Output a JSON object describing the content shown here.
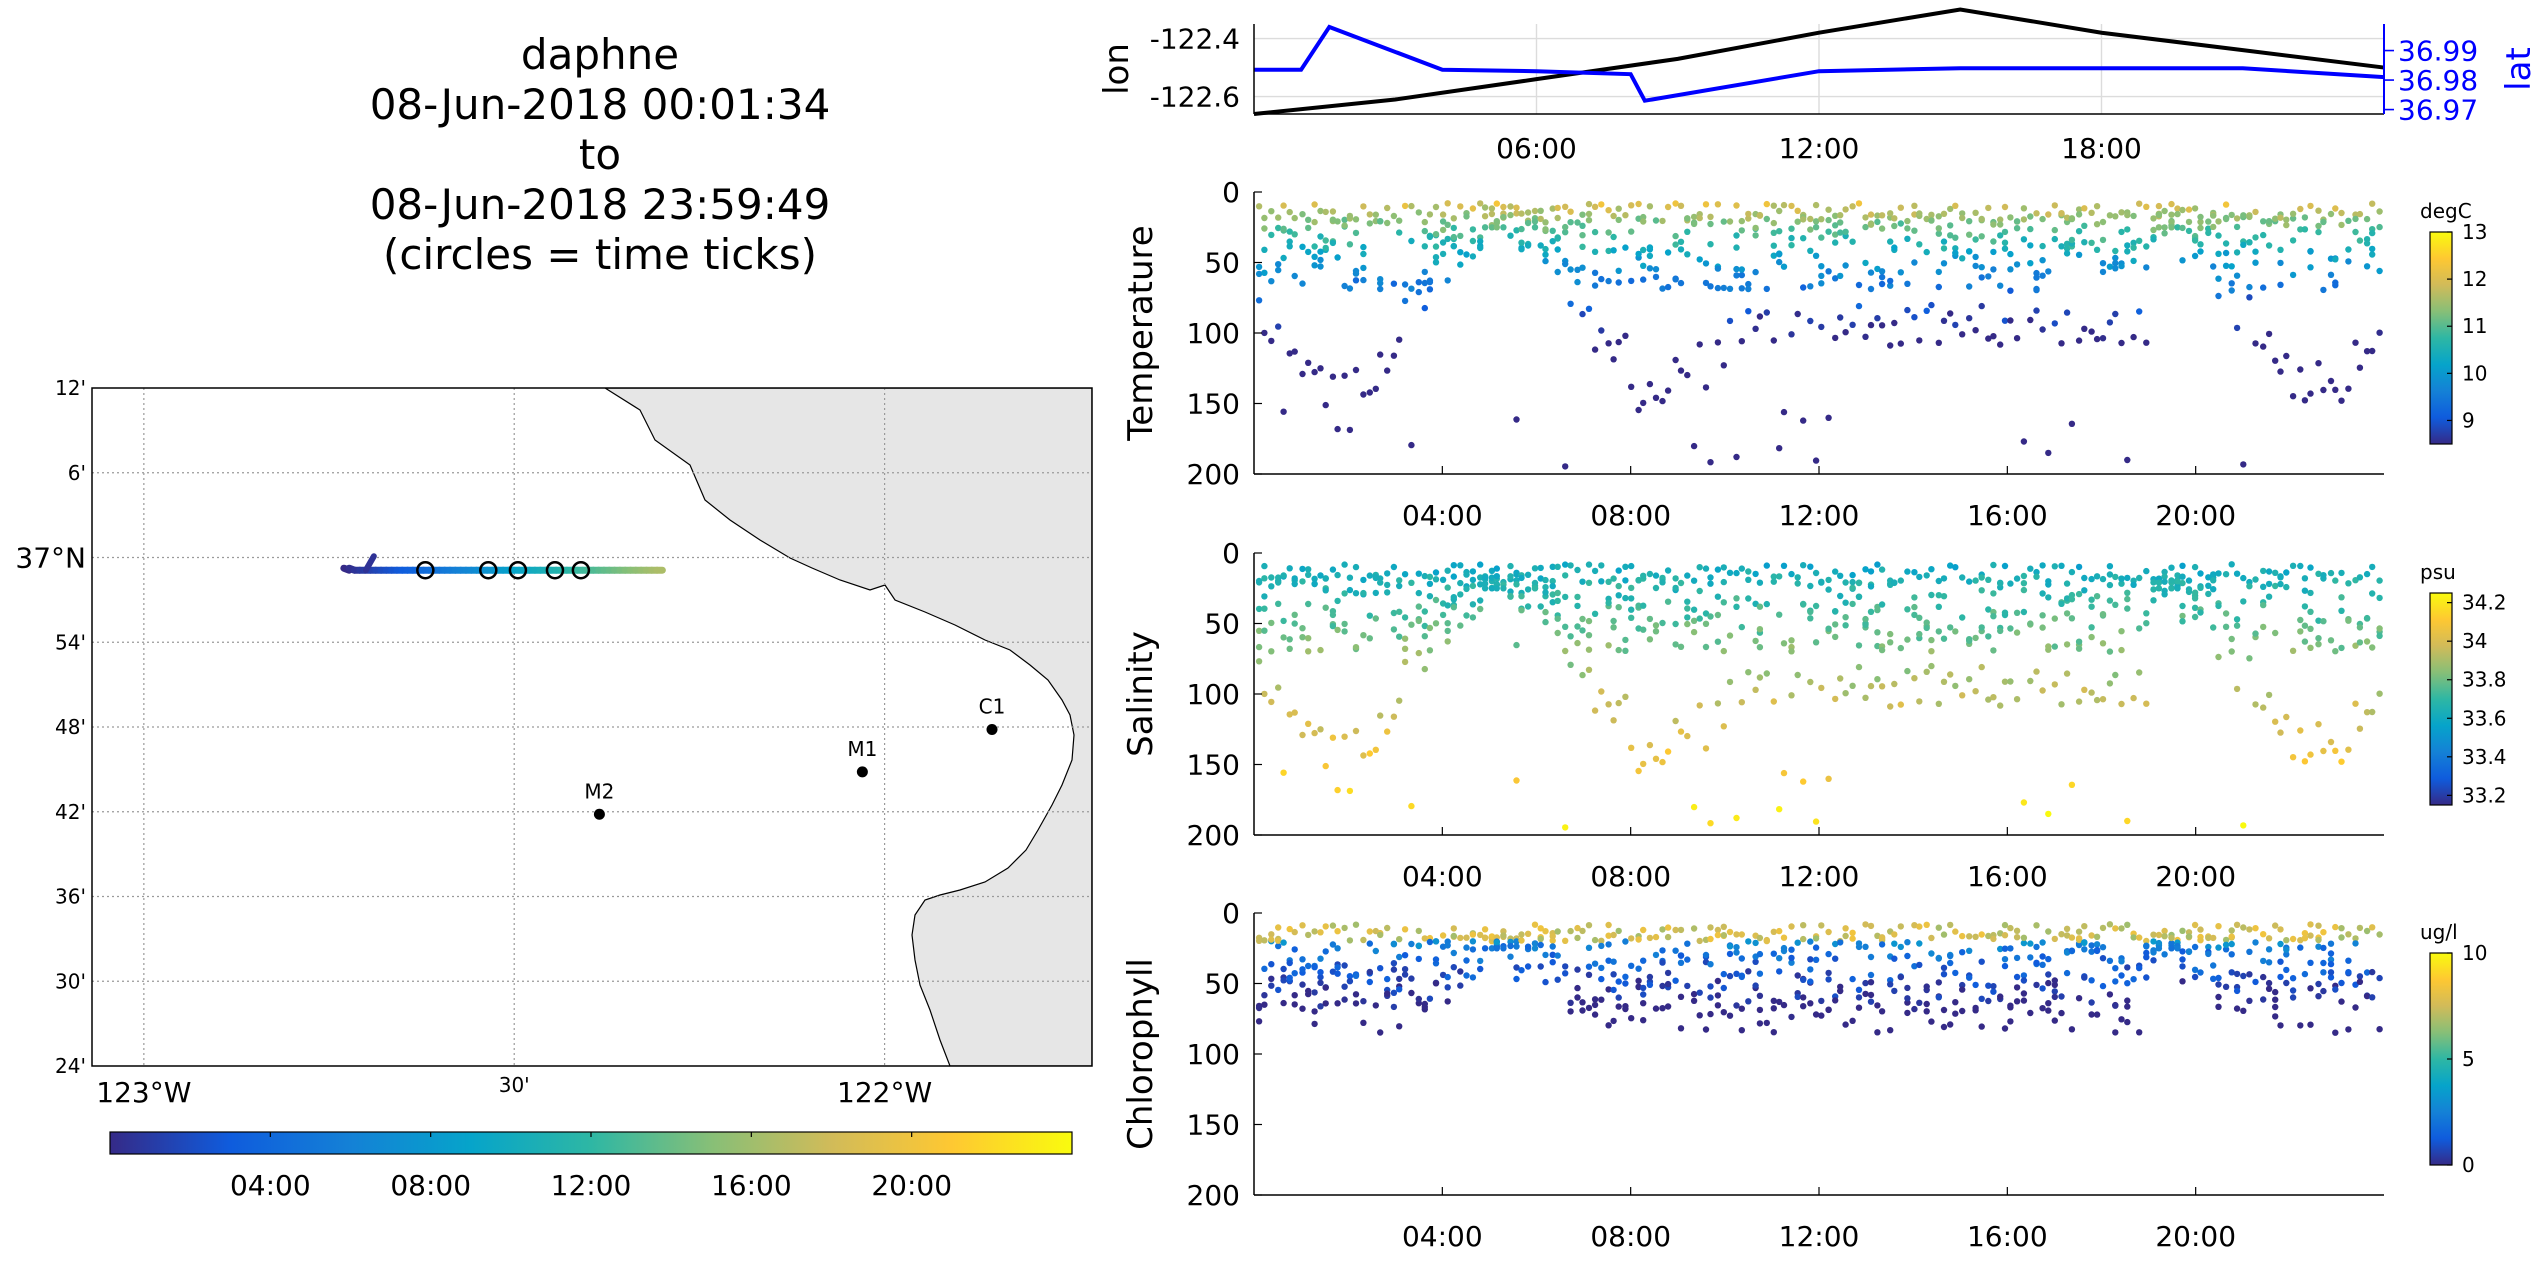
{
  "title": {
    "vehicle": "daphne",
    "start": "08-Jun-2018 00:01:34",
    "to": "to",
    "end": "08-Jun-2018 23:59:49",
    "note": "(circles = time ticks)"
  },
  "colors": {
    "lon_line": "#000000",
    "lat_line": "#0000ff",
    "land": "#e6e6e6",
    "grid": "#b0b0b0",
    "parula": [
      "#352a87",
      "#0f5cdd",
      "#1481d6",
      "#06a4ca",
      "#2eb7a4",
      "#87bf77",
      "#d1bb59",
      "#fec832",
      "#f9fb0e"
    ]
  },
  "map": {
    "lat_labels": [
      "12'",
      "6'",
      "37°N",
      "54'",
      "48'",
      "42'",
      "36'",
      "30'",
      "24'"
    ],
    "lon_labels": [
      "123°W",
      "30'",
      "122°W"
    ],
    "stations": [
      {
        "name": "C1",
        "lon": -121.855,
        "lat": 36.797
      },
      {
        "name": "M1",
        "lon": -122.03,
        "lat": 36.747
      },
      {
        "name": "M2",
        "lon": -122.385,
        "lat": 36.697
      }
    ],
    "track": {
      "lon_start": -122.73,
      "lon_end": -122.3,
      "lat": 36.985,
      "time_tick_lons": [
        -122.62,
        -122.535,
        -122.495,
        -122.445,
        -122.41
      ]
    },
    "colorbar_ticks": [
      "04:00",
      "08:00",
      "12:00",
      "16:00",
      "20:00"
    ]
  },
  "chart_data": [
    {
      "type": "line",
      "title": "",
      "ylabel_left": "lon",
      "ylabel_right": "lat",
      "x_ticks": [
        "06:00",
        "12:00",
        "18:00"
      ],
      "y_left_ticks": [
        "-122.4",
        "-122.6"
      ],
      "y_right_ticks": [
        "36.99",
        "36.98",
        "36.97"
      ],
      "series": [
        {
          "name": "lon",
          "axis": "left",
          "x_hours": [
            0,
            3,
            6,
            9,
            12,
            15,
            18,
            21,
            24
          ],
          "values": [
            -122.66,
            -122.61,
            -122.54,
            -122.47,
            -122.38,
            -122.3,
            -122.38,
            -122.44,
            -122.5
          ]
        },
        {
          "name": "lat",
          "axis": "right",
          "x_hours": [
            0,
            1,
            1.6,
            4,
            6,
            8,
            8.3,
            12,
            15,
            17.5,
            21,
            24
          ],
          "values": [
            36.9835,
            36.9835,
            36.998,
            36.9835,
            36.983,
            36.982,
            36.973,
            36.983,
            36.984,
            36.984,
            36.984,
            36.981
          ]
        }
      ]
    },
    {
      "type": "scatter",
      "ylabel": "Temperature",
      "colorbar_label": "degC",
      "colorbar_ticks": [
        "13",
        "12",
        "11",
        "10",
        "9"
      ],
      "clim": [
        8.5,
        13
      ],
      "ylim": [
        200,
        0
      ],
      "y_ticks": [
        "0",
        "50",
        "100",
        "150",
        "200"
      ],
      "x_ticks": [
        "04:00",
        "08:00",
        "12:00",
        "16:00",
        "20:00"
      ]
    },
    {
      "type": "scatter",
      "ylabel": "Salinity",
      "colorbar_label": "psu",
      "colorbar_ticks": [
        "34.2",
        "34",
        "33.8",
        "33.6",
        "33.4",
        "33.2"
      ],
      "clim": [
        33.15,
        34.25
      ],
      "ylim": [
        200,
        0
      ],
      "y_ticks": [
        "0",
        "50",
        "100",
        "150",
        "200"
      ],
      "x_ticks": [
        "04:00",
        "08:00",
        "12:00",
        "16:00",
        "20:00"
      ]
    },
    {
      "type": "scatter",
      "ylabel": "Chlorophyll",
      "colorbar_label": "ug/l",
      "colorbar_ticks": [
        "10",
        "5",
        "0"
      ],
      "clim": [
        0,
        10
      ],
      "ylim": [
        200,
        0
      ],
      "y_ticks": [
        "0",
        "50",
        "100",
        "150",
        "200"
      ],
      "x_ticks": [
        "04:00",
        "08:00",
        "12:00",
        "16:00",
        "20:00"
      ]
    }
  ]
}
